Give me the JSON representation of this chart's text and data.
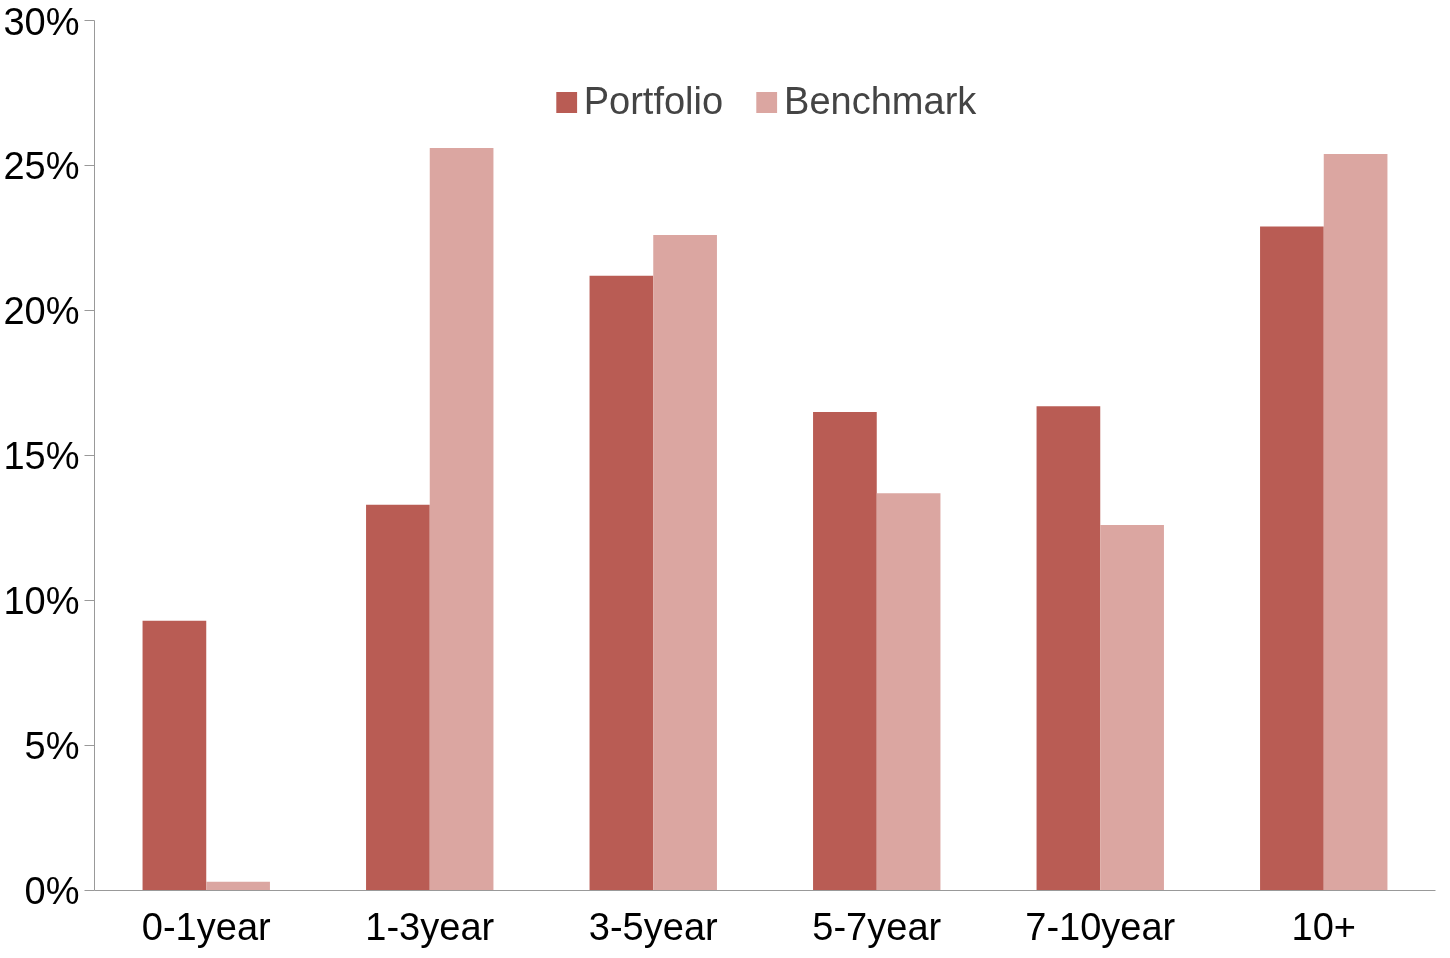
{
  "chart_data": {
    "type": "bar",
    "categories": [
      "0-1year",
      "1-3year",
      "3-5year",
      "5-7year",
      "7-10year",
      "10+"
    ],
    "series": [
      {
        "name": "Portfolio",
        "color": "#b95c54",
        "values": [
          9.3,
          13.3,
          21.2,
          16.5,
          16.7,
          22.9
        ]
      },
      {
        "name": "Benchmark",
        "color": "#dba6a1",
        "values": [
          0.3,
          25.6,
          22.6,
          13.7,
          12.6,
          25.4
        ]
      }
    ],
    "ylim": [
      0,
      30
    ],
    "yticks": [
      {
        "value": 0,
        "label": "0%"
      },
      {
        "value": 5,
        "label": "5%"
      },
      {
        "value": 10,
        "label": "10%"
      },
      {
        "value": 15,
        "label": "15%"
      },
      {
        "value": 20,
        "label": "20%"
      },
      {
        "value": 25,
        "label": "25%"
      },
      {
        "value": 30,
        "label": "30%"
      }
    ],
    "grid": false,
    "legend": "top"
  }
}
